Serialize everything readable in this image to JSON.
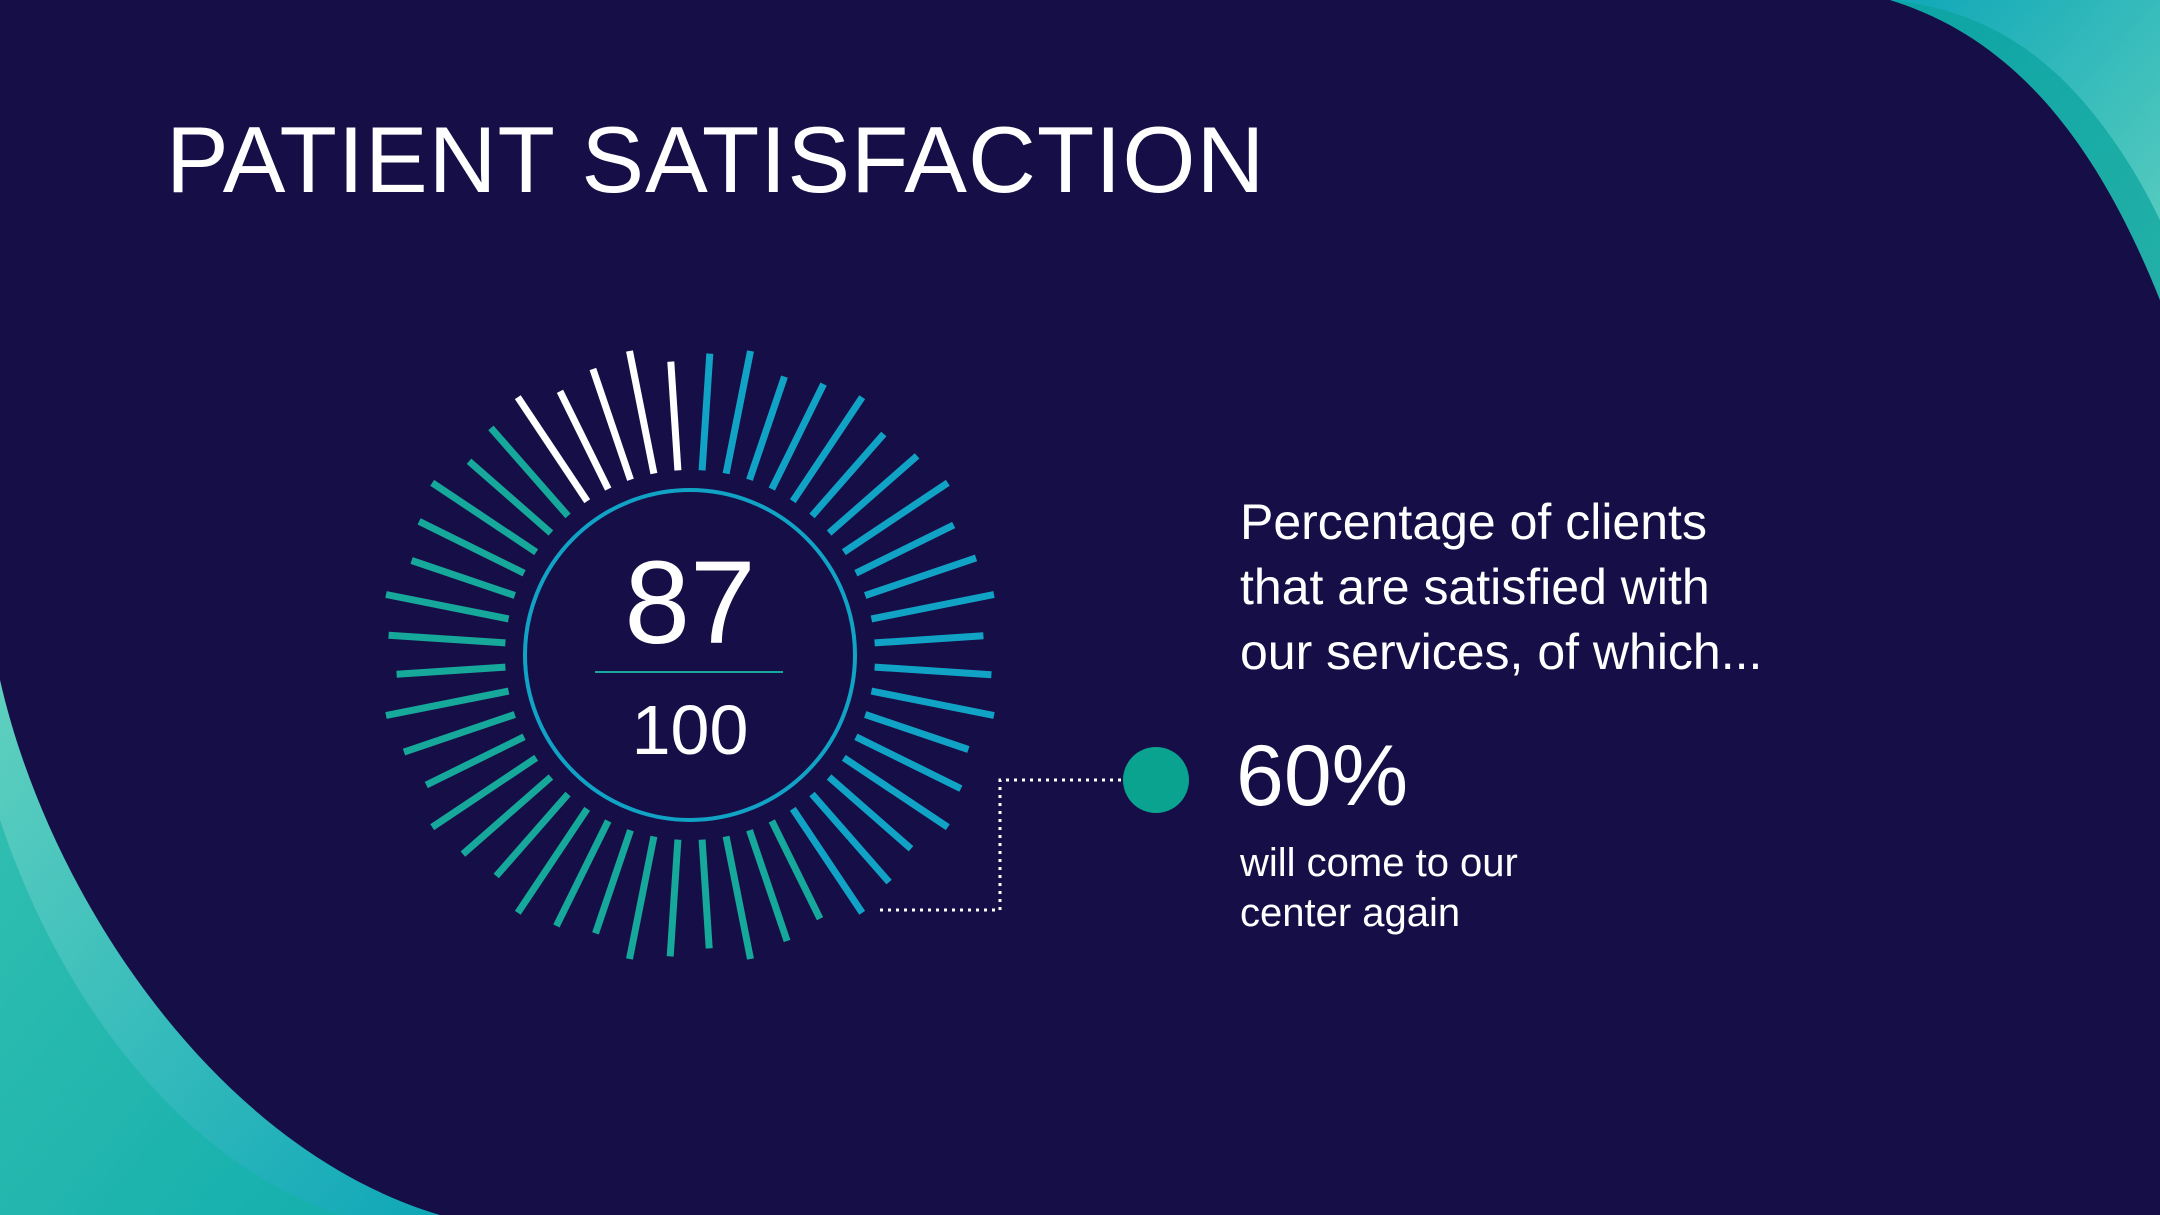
{
  "slide": {
    "title": "PATIENT SATISFACTION"
  },
  "gauge": {
    "value": "87",
    "total": "100",
    "tick_count": 48,
    "highlight_ticks": 5,
    "colors": {
      "highlight": "#ffffff",
      "blue": "#11a3c6",
      "teal": "#16a89a",
      "ring": "#11a3c6"
    }
  },
  "description": {
    "line1": "Percentage of clients",
    "line2": "that are satisfied with",
    "line3": "our services, of which..."
  },
  "stat": {
    "value": "60%",
    "label_line1": "will come to our",
    "label_line2": "center again"
  },
  "colors": {
    "background": "#160f47",
    "accent_teal": "#16a89a",
    "accent_cyan": "#11a3c6",
    "accent_light": "#5fd0bf"
  }
}
